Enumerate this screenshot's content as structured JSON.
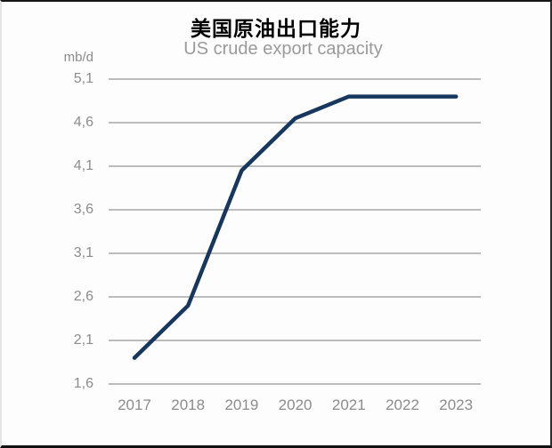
{
  "page": {
    "title": "美国原油出口能力"
  },
  "chart_data": {
    "type": "line",
    "title": "US crude export capacity",
    "unit": "mb/d",
    "categories": [
      "2017",
      "2018",
      "2019",
      "2020",
      "2021",
      "2022",
      "2023"
    ],
    "series": [
      {
        "name": "US crude export capacity",
        "values": [
          1.9,
          2.5,
          4.05,
          4.65,
          4.9,
          4.9,
          4.9
        ]
      }
    ],
    "ylim": [
      1.6,
      5.1
    ],
    "ytick_step": 0.5,
    "ytick_labels": [
      "5,1",
      "4,6",
      "4,1",
      "3,6",
      "3,1",
      "2,6",
      "2,1",
      "1,6"
    ],
    "grid": true,
    "legend": "none",
    "colors": {
      "line": "#17375e",
      "grid": "#b3b3b3",
      "tick_text": "#8c8c8c",
      "subtitle_text": "#9a9a9a",
      "title_text": "#000000"
    }
  }
}
